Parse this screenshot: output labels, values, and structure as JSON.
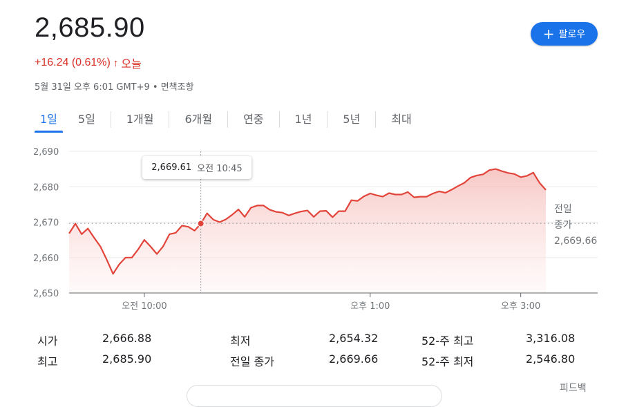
{
  "header": {
    "price": "2,685.90",
    "change": "+16.24 (0.61%)",
    "change_arrow": "↑",
    "change_period": "오늘",
    "meta": "5월 31일 오후 6:01 GMT+9 • 면책조항",
    "follow_icon": "plus-icon",
    "follow_label": "팔로우"
  },
  "tabs": [
    "1일",
    "5일",
    "1개월",
    "6개월",
    "연중",
    "1년",
    "5년",
    "최대"
  ],
  "active_tab": 0,
  "tooltip": {
    "value": "2,669.61",
    "time": "오전 10:45"
  },
  "prev_close": {
    "label_line1": "전일",
    "label_line2": "종가",
    "value": "2,669.66"
  },
  "stats": {
    "open_label": "시가",
    "open_value": "2,666.88",
    "high_label": "최고",
    "high_value": "2,685.90",
    "low_label": "최저",
    "low_value": "2,654.32",
    "prev_close_label": "전일 종가",
    "prev_close_value": "2,669.66",
    "w52_high_label": "52-주 최고",
    "w52_high_value": "3,316.08",
    "w52_low_label": "52-주 최저",
    "w52_low_value": "2,546.80"
  },
  "footer": {
    "feedback": "피드백"
  },
  "colors": {
    "line": "#e2443a",
    "accent": "#1a73e8",
    "down": "#d93025"
  },
  "chart_data": {
    "type": "area",
    "yticks": [
      "2,690",
      "2,680",
      "2,670",
      "2,660",
      "2,650"
    ],
    "ylim": [
      2650,
      2690
    ],
    "xticks": [
      {
        "label": "오전 10:00",
        "t": 60
      },
      {
        "label": "오후 1:00",
        "t": 240
      },
      {
        "label": "오후 3:00",
        "t": 360
      }
    ],
    "xlim": [
      0,
      450
    ],
    "baseline": 2669.66,
    "highlight": {
      "t": 105,
      "value": 2669.61
    },
    "t": [
      0,
      5,
      10,
      15,
      20,
      25,
      30,
      35,
      40,
      45,
      50,
      55,
      60,
      65,
      70,
      75,
      80,
      85,
      90,
      95,
      100,
      105,
      110,
      115,
      120,
      125,
      130,
      135,
      140,
      145,
      150,
      155,
      160,
      165,
      170,
      175,
      180,
      185,
      190,
      195,
      200,
      205,
      210,
      215,
      220,
      225,
      230,
      235,
      240,
      245,
      250,
      255,
      260,
      265,
      270,
      275,
      280,
      285,
      290,
      295,
      300,
      305,
      310,
      315,
      320,
      325,
      330,
      335,
      340,
      345,
      350,
      355,
      360,
      365,
      370,
      375,
      380
    ],
    "values": [
      2666.8,
      2669.6,
      2666.6,
      2668.2,
      2665.6,
      2663.1,
      2659.4,
      2655.4,
      2658.1,
      2660.0,
      2660.0,
      2662.3,
      2665.0,
      2663.1,
      2661.0,
      2663.2,
      2666.6,
      2667.0,
      2669.0,
      2668.7,
      2667.6,
      2669.6,
      2672.5,
      2670.7,
      2670.0,
      2670.8,
      2672.1,
      2673.6,
      2671.5,
      2674.1,
      2674.7,
      2674.7,
      2673.5,
      2672.9,
      2672.7,
      2671.9,
      2672.5,
      2673.0,
      2673.3,
      2671.5,
      2673.1,
      2673.2,
      2671.4,
      2673.1,
      2673.1,
      2676.2,
      2676.0,
      2677.3,
      2678.1,
      2677.6,
      2677.2,
      2678.2,
      2677.8,
      2677.8,
      2678.5,
      2677.0,
      2677.2,
      2677.2,
      2678.1,
      2678.7,
      2678.3,
      2679.2,
      2680.2,
      2681.1,
      2682.6,
      2683.2,
      2683.5,
      2684.7,
      2685.0,
      2684.4,
      2683.9,
      2683.6,
      2682.7,
      2683.1,
      2684.0,
      2681.1,
      2679.1
    ]
  }
}
